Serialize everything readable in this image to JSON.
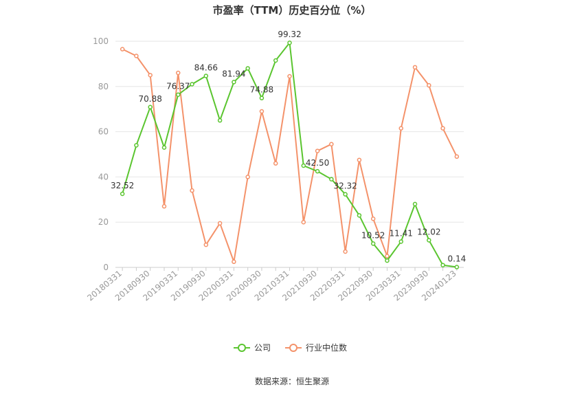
{
  "chart_data": {
    "type": "line",
    "title": "市盈率（TTM）历史百分位（%）",
    "xlabel": "",
    "ylabel": "",
    "ylim": [
      0,
      100
    ],
    "yticks": [
      0,
      20,
      40,
      60,
      80,
      100
    ],
    "grid": true,
    "legend_position": "bottom",
    "x": [
      "20180331",
      "20180630",
      "20180930",
      "20181231",
      "20190331",
      "20190630",
      "20190930",
      "20191231",
      "20200331",
      "20200630",
      "20200930",
      "20201231",
      "20210331",
      "20210630",
      "20210930",
      "20211231",
      "20220331",
      "20220630",
      "20220930",
      "20221231",
      "20230331",
      "20230630",
      "20230930",
      "20231231",
      "20240123"
    ],
    "x_tick_labels": [
      "20180331",
      "20180930",
      "20190331",
      "20190930",
      "20200331",
      "20200930",
      "20210331",
      "20210930",
      "20220331",
      "20220930",
      "20230331",
      "20230930",
      "20240123"
    ],
    "series": [
      {
        "name": "公司",
        "color": "#5ac52f",
        "values": [
          32.52,
          54,
          70.88,
          53,
          76.37,
          81,
          84.66,
          65,
          81.94,
          88,
          74.88,
          91.5,
          99.32,
          45,
          42.5,
          39,
          32.32,
          23,
          10.52,
          3,
          11.41,
          28,
          12.02,
          1,
          0.14
        ],
        "labels": {
          "0": "32.52",
          "2": "70.88",
          "4": "76.37",
          "6": "84.66",
          "8": "81.94",
          "10": "74.88",
          "12": "99.32",
          "14": "42.50",
          "16": "32.32",
          "18": "10.52",
          "20": "11.41",
          "22": "12.02",
          "24": "0.14"
        }
      },
      {
        "name": "行业中位数",
        "color": "#f4926a",
        "values": [
          96.5,
          93.5,
          85,
          27,
          86,
          34,
          10,
          19.5,
          2.5,
          40,
          69,
          46,
          84.5,
          20,
          51.5,
          54.5,
          7,
          47.5,
          21.5,
          5,
          61.5,
          88.5,
          80.5,
          61.5,
          49
        ]
      }
    ]
  },
  "source_text": "数据来源：恒生聚源"
}
